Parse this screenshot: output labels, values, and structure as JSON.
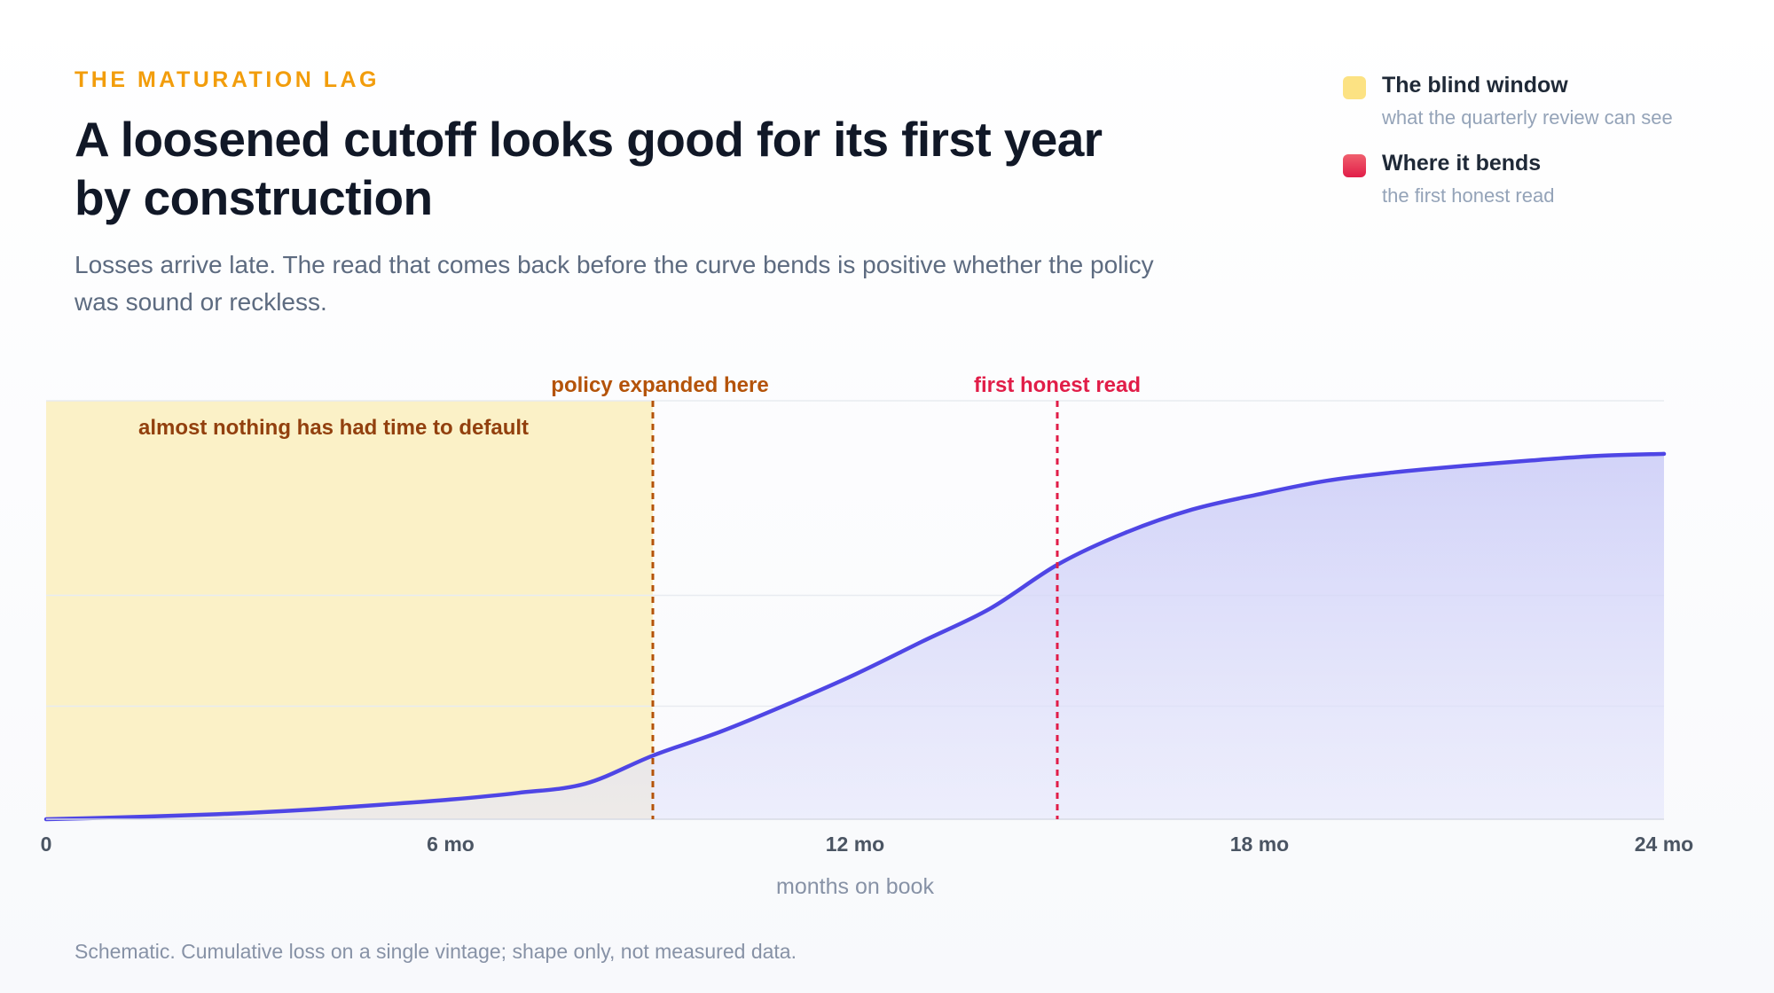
{
  "header": {
    "eyebrow": "THE MATURATION LAG",
    "title": "A loosened cutoff looks good for its first year by construction",
    "subtitle": "Losses arrive late. The read that comes back before the curve bends is positive whether the policy was sound or reckless."
  },
  "legend": {
    "items": [
      {
        "label": "The blind window",
        "sub": "what the quarterly review can see",
        "color": "#fce283"
      },
      {
        "label": "Where it bends",
        "sub": "the first honest read",
        "color": "#e11d48"
      }
    ]
  },
  "chart_data": {
    "type": "area",
    "xlabel": "months on book",
    "ylabel": "",
    "xlim": [
      0,
      24
    ],
    "ylim": [
      0,
      1
    ],
    "x_ticks": [
      {
        "value": 0,
        "label": "0"
      },
      {
        "value": 6,
        "label": "6 mo"
      },
      {
        "value": 12,
        "label": "12 mo"
      },
      {
        "value": 18,
        "label": "18 mo"
      },
      {
        "value": 24,
        "label": "24 mo"
      }
    ],
    "y_gridlines": [
      0.27,
      0.535,
      1.0
    ],
    "grid": true,
    "series": [
      {
        "x": [
          0,
          1,
          2,
          3,
          4,
          5,
          6,
          7,
          8,
          9,
          10,
          11,
          12,
          13,
          14,
          15,
          16,
          17,
          18,
          19,
          20,
          21,
          22,
          23,
          24
        ],
        "y": [
          0.0,
          0.004,
          0.009,
          0.015,
          0.024,
          0.035,
          0.047,
          0.063,
          0.085,
          0.152,
          0.209,
          0.275,
          0.346,
          0.425,
          0.503,
          0.608,
          0.684,
          0.74,
          0.777,
          0.809,
          0.829,
          0.844,
          0.857,
          0.868,
          0.873
        ]
      }
    ],
    "blind_window": {
      "from": 0,
      "to": 9,
      "label": "almost nothing has had time to default"
    },
    "annotations": [
      {
        "x": 9,
        "label": "policy expanded here",
        "color": "#b45309"
      },
      {
        "x": 15,
        "label": "first honest read",
        "color": "#e11d48"
      }
    ],
    "colors": {
      "line": "#4f46e5",
      "fill": "#c7c8f7",
      "window": "#fbefc1",
      "grid": "#e8ebf1"
    }
  },
  "footnote": "Schematic. Cumulative loss on a single vintage; shape only, not measured data."
}
